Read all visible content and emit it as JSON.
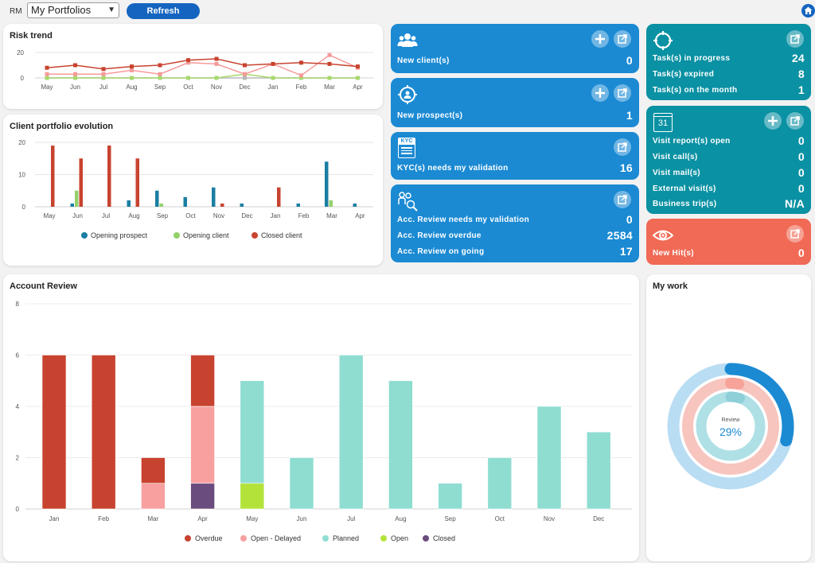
{
  "header": {
    "rm_label": "RM",
    "portfolio_selected": "My Portfolios",
    "refresh_label": "Refresh"
  },
  "risk_trend": {
    "title": "Risk trend",
    "chart_data": {
      "type": "line",
      "categories": [
        "May",
        "Jun",
        "Jul",
        "Aug",
        "Sep",
        "Oct",
        "Nov",
        "Dec",
        "Jan",
        "Feb",
        "Mar",
        "Apr"
      ],
      "ylim": [
        0,
        20
      ],
      "yticks": [
        "20",
        "0"
      ],
      "series": [
        {
          "color": "#c8432f",
          "values": [
            8,
            10,
            7,
            9,
            10,
            14,
            15,
            10,
            11,
            12,
            11,
            9
          ]
        },
        {
          "color": "#f59a9a",
          "values": [
            3,
            3,
            3,
            6,
            3,
            12,
            11,
            3,
            11,
            2,
            18,
            8
          ]
        },
        {
          "color": "#a8d86e",
          "values": [
            0,
            0,
            0,
            0,
            0,
            0,
            0,
            3,
            0,
            0,
            0,
            0
          ]
        },
        {
          "color": "#b8b8b8",
          "values": [
            0,
            0,
            0,
            0,
            0,
            0,
            0,
            0,
            0,
            0,
            0,
            0
          ]
        }
      ]
    }
  },
  "portfolio_evolution": {
    "title": "Client portfolio evolution",
    "chart_data": {
      "type": "bar",
      "categories": [
        "May",
        "Jun",
        "Jul",
        "Aug",
        "Sep",
        "Oct",
        "Nov",
        "Dec",
        "Jan",
        "Feb",
        "Mar",
        "Apr"
      ],
      "ylim": [
        0,
        20
      ],
      "yticks": [
        "20",
        "10",
        "0"
      ],
      "series": [
        {
          "name": "Opening prospect",
          "color": "#1a7ea3",
          "values": [
            0,
            1,
            0,
            2,
            5,
            3,
            6,
            1,
            0,
            1,
            14,
            1
          ]
        },
        {
          "name": "Opening client",
          "color": "#93d16a",
          "values": [
            0,
            5,
            0,
            0,
            1,
            0,
            0,
            0,
            0,
            0,
            2,
            0
          ]
        },
        {
          "name": "Closed client",
          "color": "#c8432f",
          "values": [
            19,
            15,
            19,
            15,
            0,
            0,
            1,
            0,
            6,
            0,
            0,
            0
          ]
        }
      ]
    }
  },
  "tiles": {
    "new_clients": {
      "label": "New client(s)",
      "value": "0"
    },
    "new_prospects": {
      "label": "New prospect(s)",
      "value": "1"
    },
    "kyc": {
      "label": "KYC(s) needs my validation",
      "value": "16",
      "icon_text": "KYC"
    },
    "acc_review": {
      "rows": [
        {
          "label": "Acc. Review needs my validation",
          "value": "0"
        },
        {
          "label": "Acc. Review overdue",
          "value": "2584"
        },
        {
          "label": "Acc. Review on going",
          "value": "17"
        }
      ]
    },
    "tasks": {
      "rows": [
        {
          "label": "Task(s) in progress",
          "value": "24"
        },
        {
          "label": "Task(s) expired",
          "value": "8"
        },
        {
          "label": "Task(s) on the month",
          "value": "1"
        }
      ]
    },
    "visits": {
      "icon_text": "31",
      "rows": [
        {
          "label": "Visit report(s) open",
          "value": "0"
        },
        {
          "label": "Visit call(s)",
          "value": "0"
        },
        {
          "label": "Visit mail(s)",
          "value": "0"
        },
        {
          "label": "External visit(s)",
          "value": "0"
        },
        {
          "label": "Business trip(s)",
          "value": "N/A"
        }
      ]
    },
    "hits": {
      "label": "New Hit(s)",
      "value": "0"
    }
  },
  "account_review": {
    "title": "Account Review",
    "chart_data": {
      "type": "bar",
      "stacked": true,
      "categories": [
        "Jan",
        "Feb",
        "Mar",
        "Apr",
        "May",
        "Jun",
        "Jul",
        "Aug",
        "Sep",
        "Oct",
        "Nov",
        "Dec"
      ],
      "ylim": [
        0,
        8
      ],
      "yticks": [
        "8",
        "6",
        "4",
        "2",
        "0"
      ],
      "series": [
        {
          "name": "Closed",
          "color": "#6b4c7e",
          "values": [
            0,
            0,
            0,
            1,
            0,
            0,
            0,
            0,
            0,
            0,
            0,
            0
          ]
        },
        {
          "name": "Open",
          "color": "#b3e33b",
          "values": [
            0,
            0,
            0,
            0,
            1,
            0,
            0,
            0,
            0,
            0,
            0,
            0
          ]
        },
        {
          "name": "Planned",
          "color": "#8fddd1",
          "values": [
            0,
            0,
            0,
            0,
            4,
            2,
            6,
            5,
            1,
            2,
            4,
            3
          ]
        },
        {
          "name": "Open - Delayed",
          "color": "#f8a0a0",
          "values": [
            0,
            0,
            1,
            3,
            0,
            0,
            0,
            0,
            0,
            0,
            0,
            0
          ]
        },
        {
          "name": "Overdue",
          "color": "#c8432f",
          "values": [
            6,
            6,
            1,
            2,
            0,
            0,
            0,
            0,
            0,
            0,
            0,
            0
          ]
        }
      ],
      "legend_order": [
        "Overdue",
        "Open - Delayed",
        "Planned",
        "Open",
        "Closed"
      ]
    }
  },
  "my_work": {
    "title": "My work",
    "center_label": "Review",
    "center_value": "29%",
    "rings": [
      {
        "color_track": "#b9ddf3",
        "color_fill": "#1b8ad3",
        "fraction": 0.29
      },
      {
        "color_track": "#f7c4be",
        "color_fill": "#f7a39a",
        "fraction": 0.03
      },
      {
        "color_track": "#aee0e6",
        "color_fill": "#8fcfd8",
        "fraction": 0.05
      }
    ]
  }
}
